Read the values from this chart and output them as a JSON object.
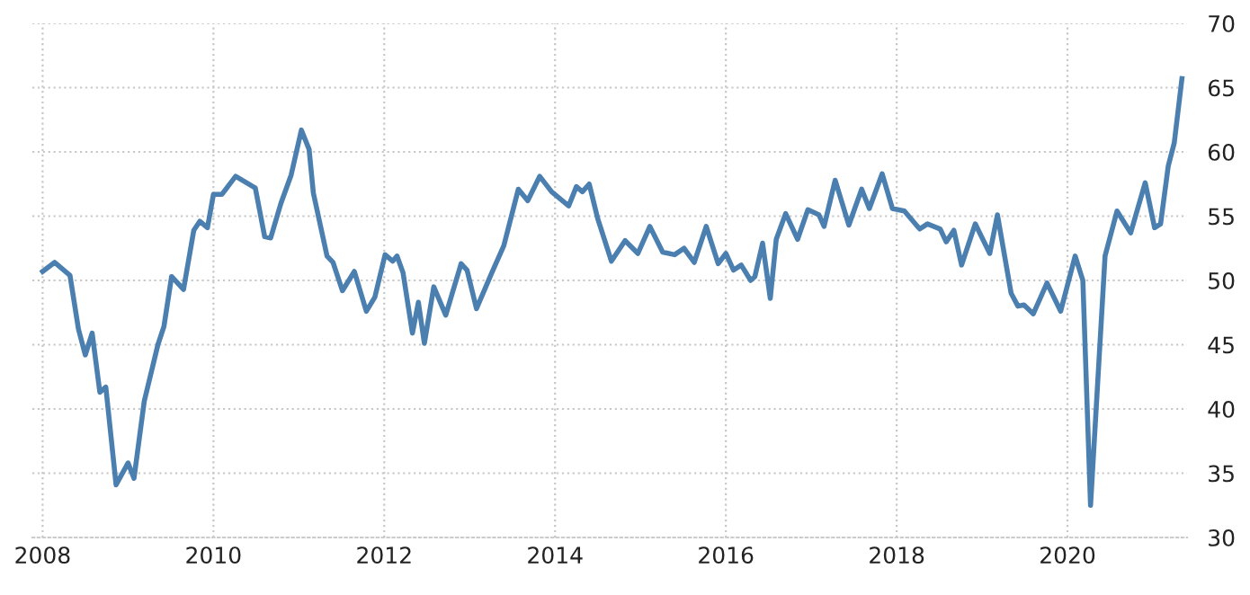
{
  "chart_data": {
    "type": "line",
    "x": [
      2008.0,
      2008.14,
      2008.32,
      2008.42,
      2008.5,
      2008.58,
      2008.67,
      2008.74,
      2008.86,
      2009.0,
      2009.07,
      2009.19,
      2009.35,
      2009.42,
      2009.51,
      2009.65,
      2009.77,
      2009.84,
      2009.93,
      2010.0,
      2010.1,
      2010.26,
      2010.49,
      2010.6,
      2010.67,
      2010.79,
      2010.91,
      2011.03,
      2011.12,
      2011.17,
      2011.33,
      2011.4,
      2011.51,
      2011.65,
      2011.79,
      2011.89,
      2012.01,
      2012.1,
      2012.15,
      2012.22,
      2012.33,
      2012.4,
      2012.47,
      2012.58,
      2012.72,
      2012.9,
      2012.97,
      2013.08,
      2013.26,
      2013.4,
      2013.57,
      2013.68,
      2013.82,
      2013.96,
      2014.16,
      2014.25,
      2014.32,
      2014.4,
      2014.5,
      2014.66,
      2014.82,
      2014.97,
      2015.11,
      2015.26,
      2015.4,
      2015.51,
      2015.63,
      2015.77,
      2015.91,
      2016.0,
      2016.09,
      2016.18,
      2016.29,
      2016.34,
      2016.43,
      2016.52,
      2016.59,
      2016.7,
      2016.84,
      2016.96,
      2017.09,
      2017.15,
      2017.28,
      2017.44,
      2017.59,
      2017.68,
      2017.83,
      2017.95,
      2018.09,
      2018.27,
      2018.36,
      2018.51,
      2018.58,
      2018.67,
      2018.76,
      2018.92,
      2019.09,
      2019.18,
      2019.34,
      2019.42,
      2019.49,
      2019.6,
      2019.76,
      2019.92,
      2020.09,
      2020.18,
      2020.27,
      2020.44,
      2020.58,
      2020.74,
      2020.91,
      2021.02,
      2021.09,
      2021.18,
      2021.25,
      2021.34
    ],
    "series": [
      {
        "color": "#4a7fb0",
        "values": [
          50.7,
          51.4,
          50.4,
          46.2,
          44.2,
          45.9,
          41.3,
          41.7,
          34.1,
          35.8,
          34.6,
          40.6,
          45.0,
          46.4,
          50.3,
          49.3,
          53.9,
          54.6,
          54.1,
          56.7,
          56.7,
          58.1,
          57.2,
          53.4,
          53.3,
          56.0,
          58.2,
          61.7,
          60.2,
          56.8,
          51.9,
          51.4,
          49.2,
          50.7,
          47.6,
          48.7,
          52.0,
          51.5,
          51.9,
          50.6,
          45.9,
          48.3,
          45.1,
          49.5,
          47.3,
          51.3,
          50.8,
          47.8,
          50.6,
          52.7,
          57.1,
          56.2,
          58.1,
          56.9,
          55.8,
          57.3,
          56.9,
          57.5,
          54.8,
          51.5,
          53.1,
          52.1,
          54.2,
          52.2,
          52.0,
          52.5,
          51.4,
          54.2,
          51.3,
          52.1,
          50.8,
          51.2,
          50.0,
          50.3,
          52.9,
          48.6,
          53.2,
          55.2,
          53.2,
          55.5,
          55.1,
          54.2,
          57.8,
          54.3,
          57.1,
          55.6,
          58.3,
          55.6,
          55.4,
          54.0,
          54.4,
          54.0,
          53.0,
          53.9,
          51.2,
          54.4,
          52.1,
          55.1,
          49.0,
          48.0,
          48.1,
          47.4,
          49.8,
          47.6,
          51.9,
          50.0,
          32.5,
          51.9,
          55.4,
          53.7,
          57.6,
          54.1,
          54.4,
          58.9,
          60.7,
          65.7
        ]
      }
    ],
    "xlim": [
      2007.88,
      2021.4
    ],
    "xticks": [
      2008,
      2010,
      2012,
      2014,
      2016,
      2018,
      2020
    ],
    "ylim": [
      30,
      70
    ],
    "yticks": [
      30,
      35,
      40,
      45,
      50,
      55,
      60,
      65,
      70
    ],
    "grid": true,
    "marker": "none",
    "line_style": "solid",
    "legend": false
  }
}
